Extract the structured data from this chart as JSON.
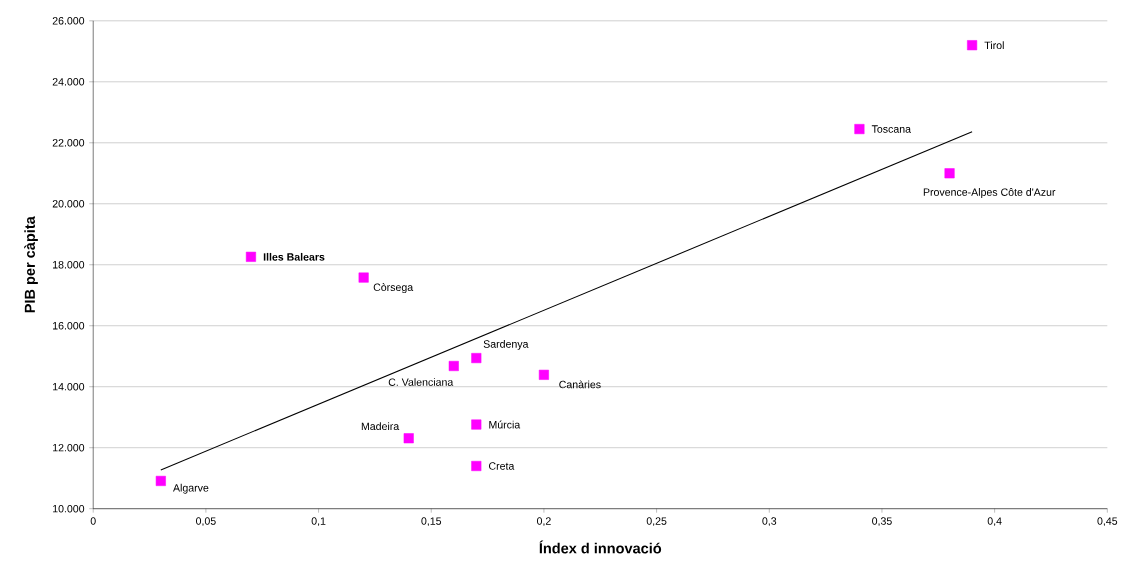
{
  "chart_data": {
    "type": "scatter",
    "xlabel": "Índex d innovació",
    "ylabel": "PIB per càpita",
    "xlim": [
      0,
      0.45
    ],
    "ylim": [
      10000,
      26000
    ],
    "xticks": [
      0,
      {
        "value": 0.05,
        "label": "0,05"
      },
      {
        "value": 0.1,
        "label": "0,1"
      },
      {
        "value": 0.15,
        "label": "0,15"
      },
      {
        "value": 0.2,
        "label": "0,2"
      },
      {
        "value": 0.25,
        "label": "0,25"
      },
      {
        "value": 0.3,
        "label": "0,3"
      },
      {
        "value": 0.35,
        "label": "0,35"
      },
      {
        "value": 0.4,
        "label": "0,4"
      },
      {
        "value": 0.45,
        "label": "0,45"
      }
    ],
    "yticks": [
      {
        "value": 10000,
        "label": "10.000"
      },
      {
        "value": 12000,
        "label": "12.000"
      },
      {
        "value": 14000,
        "label": "14.000"
      },
      {
        "value": 16000,
        "label": "16.000"
      },
      {
        "value": 18000,
        "label": "18.000"
      },
      {
        "value": 20000,
        "label": "20.000"
      },
      {
        "value": 22000,
        "label": "22.000"
      },
      {
        "value": 24000,
        "label": "24.000"
      },
      {
        "value": 26000,
        "label": "26.000"
      }
    ],
    "grid": "y",
    "marker": "square",
    "series": [
      {
        "color": "#ff00ff",
        "x": [
          0.39,
          0.34,
          0.38,
          0.07,
          0.12,
          0.17,
          0.16,
          0.2,
          0.17,
          0.14,
          0.17,
          0.03
        ],
        "values": [
          25200,
          22450,
          21000,
          18260,
          17580,
          14940,
          14680,
          14390,
          12760,
          12310,
          11400,
          10910
        ]
      },
      {
        "type": "line",
        "marker": "none",
        "color": "#000000",
        "x": [
          0.03,
          0.39
        ],
        "values": [
          11270,
          22360
        ]
      }
    ],
    "annotations": [
      {
        "text": "Tirol",
        "x": 0.39,
        "y": 25200
      },
      {
        "text": "Toscana",
        "x": 0.34,
        "y": 22450
      },
      {
        "text": "Provence-Alpes Côte d'Azur",
        "x": 0.38,
        "y": 21000
      },
      {
        "text": "**Illes Balears**",
        "x": 0.07,
        "y": 18260
      },
      {
        "text": "Còrsega",
        "x": 0.12,
        "y": 17580
      },
      {
        "text": "Sardenya",
        "x": 0.17,
        "y": 14940
      },
      {
        "text": "C. Valenciana",
        "x": 0.16,
        "y": 14680
      },
      {
        "text": "Canàries",
        "x": 0.2,
        "y": 14390
      },
      {
        "text": "Múrcia",
        "x": 0.17,
        "y": 12760
      },
      {
        "text": "Madeira",
        "x": 0.14,
        "y": 12310
      },
      {
        "text": "Creta",
        "x": 0.17,
        "y": 11400
      },
      {
        "text": "Algarve",
        "x": 0.03,
        "y": 10910
      }
    ]
  }
}
